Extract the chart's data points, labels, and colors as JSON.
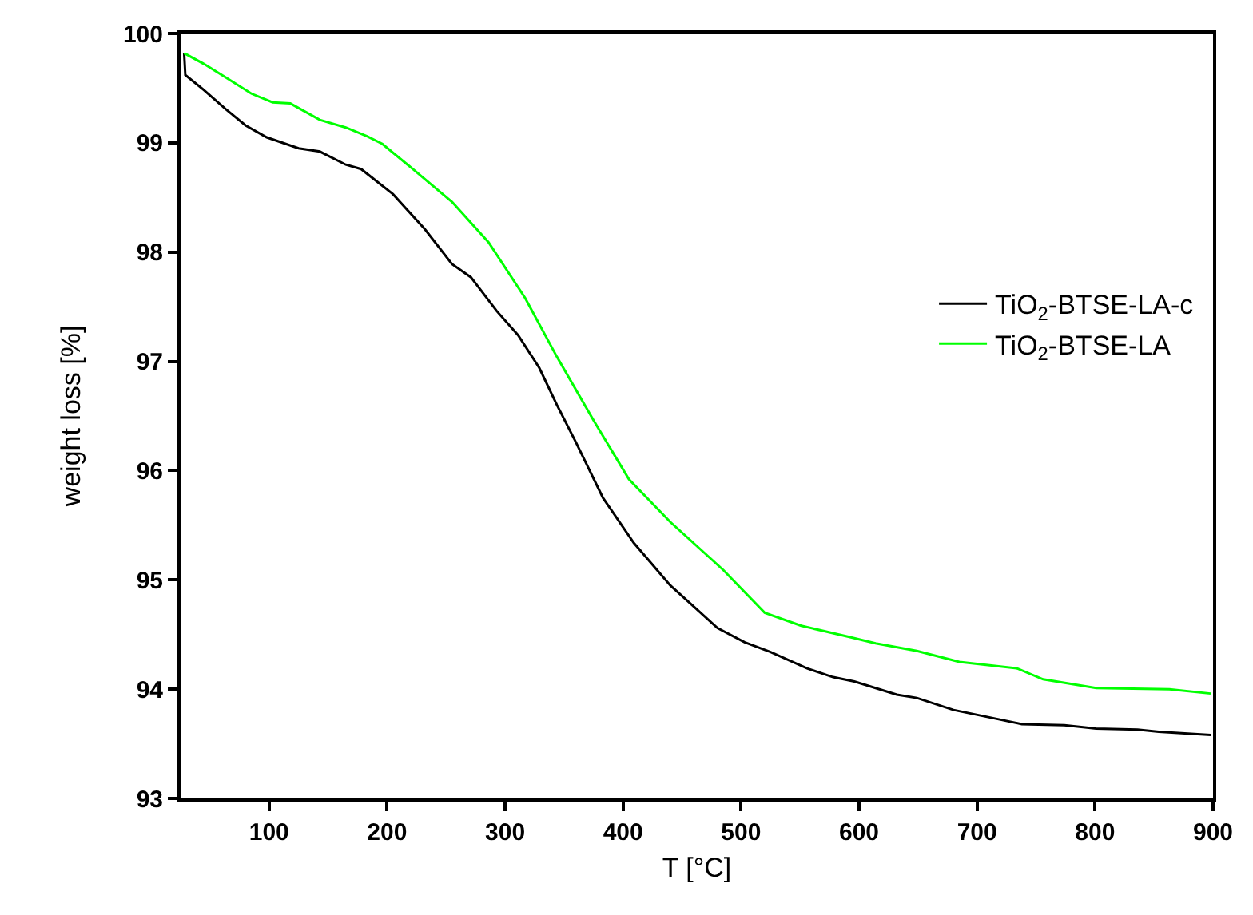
{
  "chart_data": {
    "type": "line",
    "xlabel": "T [°C]",
    "ylabel": "weight loss [%]",
    "xlim": [
      25,
      900
    ],
    "xticks": [
      100,
      200,
      300,
      400,
      500,
      600,
      700,
      800,
      900
    ],
    "ylim": [
      93,
      100
    ],
    "yticks": [
      93,
      94,
      95,
      96,
      97,
      98,
      99,
      100
    ],
    "legend": "right",
    "marker": "none",
    "line_style": "solid",
    "series": [
      {
        "name": "TiO$_{2}$-BTSE-LA-c",
        "color": "#000000",
        "x": [
          28,
          29,
          45,
          63,
          80,
          98,
          125,
          143,
          165,
          178,
          205,
          232,
          255,
          271,
          293,
          311,
          329,
          344,
          360,
          383,
          409,
          440,
          480,
          503,
          525,
          556,
          578,
          596,
          632,
          649,
          680,
          716,
          738,
          774,
          801,
          836,
          854,
          898
        ],
        "values": [
          99.82,
          99.62,
          99.48,
          99.31,
          99.16,
          99.05,
          98.95,
          98.92,
          98.8,
          98.76,
          98.53,
          98.21,
          97.89,
          97.77,
          97.46,
          97.24,
          96.94,
          96.6,
          96.26,
          95.75,
          95.34,
          94.95,
          94.56,
          94.43,
          94.34,
          94.19,
          94.11,
          94.07,
          93.95,
          93.92,
          93.81,
          93.73,
          93.68,
          93.67,
          93.64,
          93.63,
          93.61,
          93.58
        ]
      },
      {
        "name": "TiO$_{2}$-BTSE-LA",
        "color": "#00ff00",
        "x": [
          28,
          45,
          63,
          85,
          103,
          118,
          143,
          165,
          183,
          196,
          223,
          255,
          286,
          317,
          344,
          375,
          405,
          440,
          485,
          520,
          551,
          591,
          614,
          649,
          685,
          734,
          756,
          801,
          863,
          898
        ],
        "values": [
          99.82,
          99.72,
          99.6,
          99.45,
          99.37,
          99.36,
          99.21,
          99.14,
          99.06,
          98.99,
          98.75,
          98.46,
          98.09,
          97.58,
          97.04,
          96.46,
          95.92,
          95.53,
          95.09,
          94.7,
          94.58,
          94.48,
          94.42,
          94.35,
          94.25,
          94.19,
          94.09,
          94.01,
          94.0,
          93.96
        ]
      }
    ]
  }
}
